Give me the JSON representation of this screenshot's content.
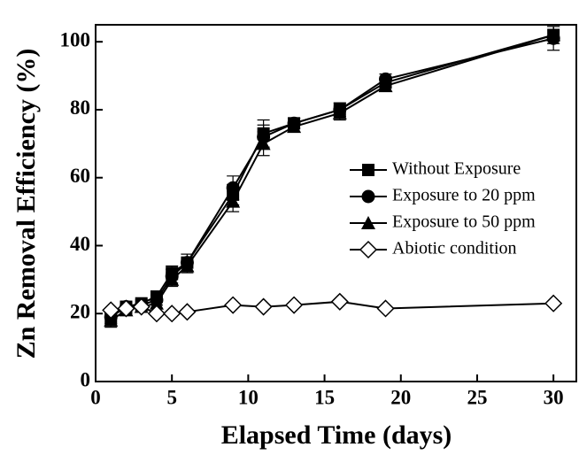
{
  "chart_data": {
    "type": "line",
    "x_label": "Elapsed Time (days)",
    "y_label": "Zn Removal Efficiency (%)",
    "x": [
      1,
      2,
      3,
      4,
      5,
      6,
      9,
      11,
      13,
      16,
      19,
      30
    ],
    "series": [
      {
        "name": "Without Exposure",
        "color": "#000000",
        "marker": "square",
        "values": [
          19,
          22,
          23,
          25,
          32,
          35,
          55,
          73,
          76,
          80,
          88,
          102
        ],
        "errors": [
          2,
          1,
          1,
          1.5,
          2,
          2.5,
          3,
          4,
          1.5,
          2,
          1.5,
          2.5
        ]
      },
      {
        "name": "Exposure to 20 ppm",
        "color": "#000000",
        "marker": "circle",
        "values": [
          19,
          22,
          22.5,
          24,
          31,
          35,
          57,
          72,
          76,
          80,
          89,
          101
        ],
        "errors": [
          2,
          1,
          1,
          1.5,
          2,
          2.5,
          3.5,
          3.5,
          1.5,
          2,
          1.5,
          3.5
        ]
      },
      {
        "name": "Exposure to 50 ppm",
        "color": "#000000",
        "marker": "triangle",
        "values": [
          18,
          21,
          22,
          23,
          30,
          34,
          53,
          70,
          75,
          79,
          87,
          102
        ],
        "errors": [
          2,
          1,
          1,
          1.5,
          2,
          2,
          3,
          3.5,
          1.5,
          2,
          1.5,
          2.5
        ]
      },
      {
        "name": "Abiotic condition",
        "color": "#000000",
        "marker": "diamond-open",
        "values": [
          21,
          21.5,
          22,
          20,
          20,
          20.5,
          22.5,
          22,
          22.5,
          23.5,
          21.5,
          23
        ]
      }
    ],
    "xlim": [
      0,
      31.5
    ],
    "xticks": [
      0,
      5,
      10,
      15,
      20,
      25,
      30
    ],
    "ylim": [
      0,
      105
    ],
    "yticks": [
      0,
      20,
      40,
      60,
      80,
      100
    ],
    "grid": false,
    "legend": "right"
  }
}
